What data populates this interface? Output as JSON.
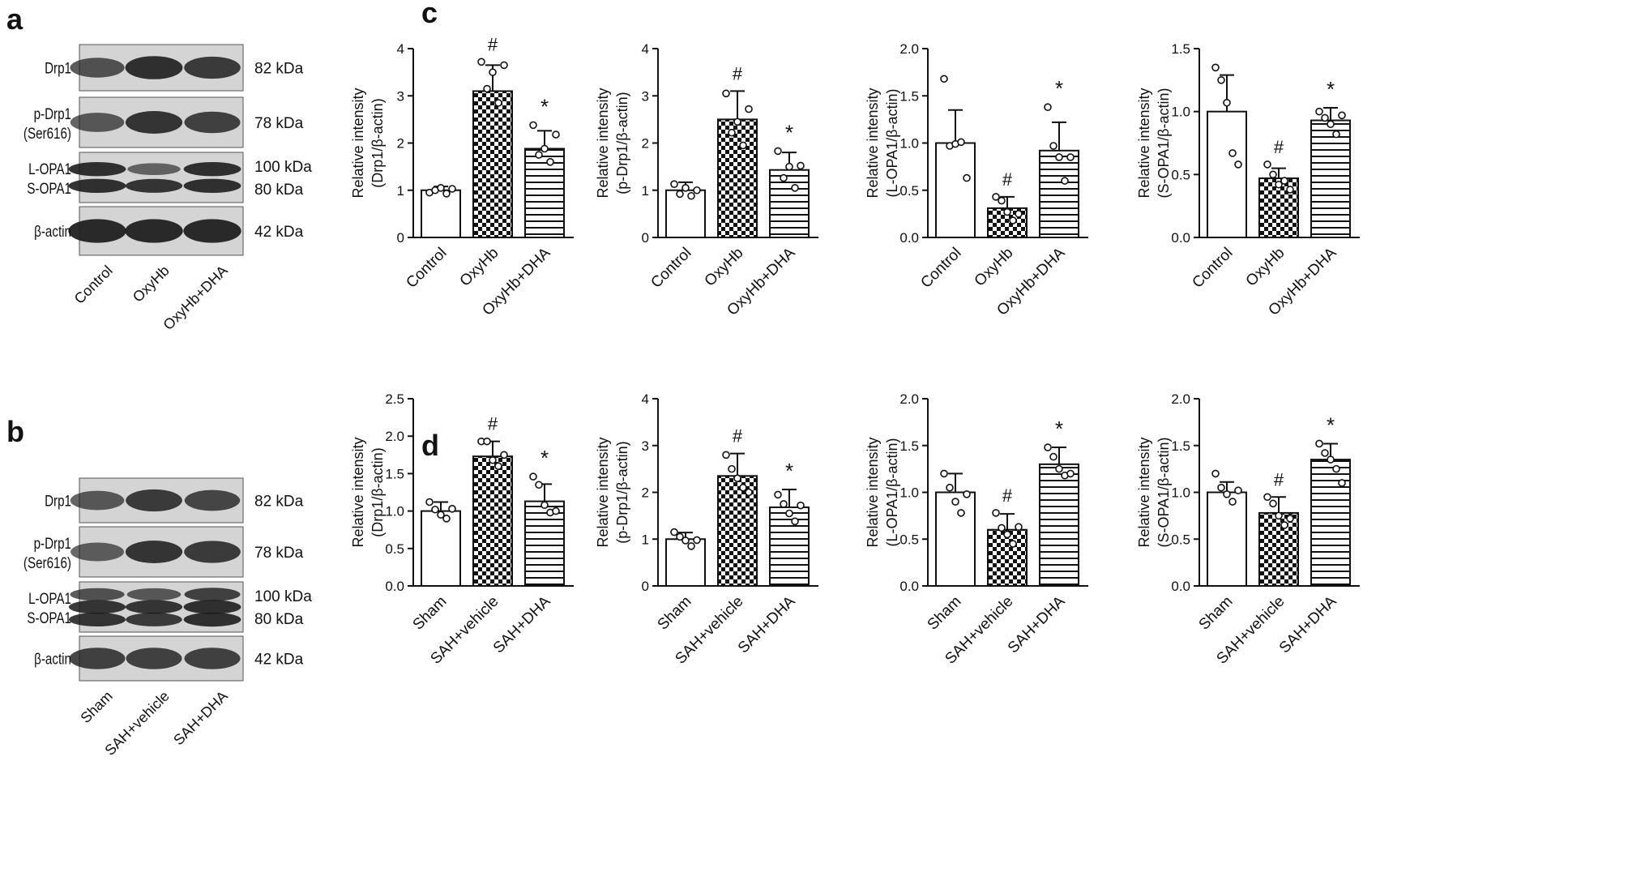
{
  "panels": {
    "a": "a",
    "b": "b",
    "c": "c",
    "d": "d"
  },
  "blots": {
    "a": {
      "rows": [
        {
          "label": "Drp1",
          "kda": "82 kDa"
        },
        {
          "label": "p-Drp1\n(Ser616)",
          "kda": "78 kDa"
        },
        {
          "label": "L-OPA1\nS-OPA1",
          "kda": "100 kDa\n80 kDa"
        },
        {
          "label": "β-actin",
          "kda": "42 kDa"
        }
      ],
      "lanes": [
        "Control",
        "OxyHb",
        "OxyHb+DHA"
      ]
    },
    "b": {
      "rows": [
        {
          "label": "Drp1",
          "kda": "82 kDa"
        },
        {
          "label": "p-Drp1\n(Ser616)",
          "kda": "78 kDa"
        },
        {
          "label": "L-OPA1\nS-OPA1",
          "kda": "100 kDa\n80 kDa"
        },
        {
          "label": "β-actin",
          "kda": "42 kDa"
        }
      ],
      "lanes": [
        "Sham",
        "SAH+vehicle",
        "SAH+DHA"
      ]
    }
  },
  "colors": {
    "bar_fill": "#ffffff",
    "bar_stroke": "#111111",
    "text": "#111111",
    "blot_bg": "#d2d2d2",
    "band": "#1a1a1a"
  },
  "chart_data": [
    {
      "panel": "c",
      "type": "bar",
      "categories": [
        "Control",
        "OxyHb",
        "OxyHb+DHA"
      ],
      "values": [
        1.0,
        3.1,
        1.88
      ],
      "errors": [
        0.08,
        0.55,
        0.38
      ],
      "points": [
        [
          0.95,
          1.0,
          1.05,
          0.93,
          1.03
        ],
        [
          3.72,
          3.15,
          3.5,
          2.85,
          3.65
        ],
        [
          2.38,
          1.75,
          1.88,
          1.6,
          2.18
        ]
      ],
      "annotations": [
        "",
        "#",
        "*"
      ],
      "ylabel": [
        "Relative intensity",
        "(Drp1/β-actin)"
      ],
      "ylim": [
        0,
        4
      ],
      "yticks": [
        0,
        1,
        2,
        3,
        4
      ],
      "ytick_labels": [
        "0",
        "1",
        "2",
        "3",
        "4"
      ],
      "patterns": [
        "plain",
        "check",
        "stripes"
      ]
    },
    {
      "panel": "c",
      "type": "bar",
      "categories": [
        "Control",
        "OxyHb",
        "OxyHb+DHA"
      ],
      "values": [
        1.0,
        2.5,
        1.43
      ],
      "errors": [
        0.17,
        0.6,
        0.37
      ],
      "points": [
        [
          1.13,
          0.92,
          1.05,
          0.88,
          1.0
        ],
        [
          3.05,
          2.22,
          2.45,
          1.95,
          2.72
        ],
        [
          1.83,
          1.26,
          1.5,
          1.05,
          1.52
        ]
      ],
      "annotations": [
        "",
        "#",
        "*"
      ],
      "ylabel": [
        "Relative intensity",
        "(p-Drp1/β-actin)"
      ],
      "ylim": [
        0,
        4
      ],
      "yticks": [
        0,
        1,
        2,
        3,
        4
      ],
      "ytick_labels": [
        "0",
        "1",
        "2",
        "3",
        "4"
      ],
      "patterns": [
        "plain",
        "check",
        "stripes"
      ]
    },
    {
      "panel": "c",
      "type": "bar",
      "categories": [
        "Control",
        "OxyHb",
        "OxyHb+DHA"
      ],
      "values": [
        1.0,
        0.31,
        0.92
      ],
      "errors": [
        0.35,
        0.12,
        0.3
      ],
      "points": [
        [
          1.68,
          0.97,
          0.99,
          1.01,
          0.63
        ],
        [
          0.43,
          0.39,
          0.27,
          0.18,
          0.25
        ],
        [
          1.38,
          0.97,
          0.85,
          0.6,
          0.85
        ]
      ],
      "annotations": [
        "",
        "#",
        "*"
      ],
      "ylabel": [
        "Relative intensity",
        "(L-OPA1/β-actin)"
      ],
      "ylim": [
        0,
        2
      ],
      "yticks": [
        0,
        0.5,
        1,
        1.5,
        2
      ],
      "ytick_labels": [
        "0.0",
        "0.5",
        "1.0",
        "1.5",
        "2.0"
      ],
      "patterns": [
        "plain",
        "check",
        "stripes"
      ]
    },
    {
      "panel": "c",
      "type": "bar",
      "categories": [
        "Control",
        "OxyHb",
        "OxyHb+DHA"
      ],
      "values": [
        1.0,
        0.47,
        0.93
      ],
      "errors": [
        0.29,
        0.08,
        0.1
      ],
      "points": [
        [
          1.35,
          1.25,
          1.07,
          0.67,
          0.58
        ],
        [
          0.58,
          0.5,
          0.42,
          0.45,
          0.38
        ],
        [
          1.0,
          0.95,
          0.9,
          0.82,
          0.97
        ]
      ],
      "annotations": [
        "",
        "#",
        "*"
      ],
      "ylabel": [
        "Relative intensity",
        "(S-OPA1/β-actin)"
      ],
      "ylim": [
        0,
        1.5
      ],
      "yticks": [
        0,
        0.5,
        1,
        1.5
      ],
      "ytick_labels": [
        "0.0",
        "0.5",
        "1.0",
        "1.5"
      ],
      "patterns": [
        "plain",
        "check",
        "stripes"
      ]
    },
    {
      "panel": "d",
      "type": "bar",
      "categories": [
        "Sham",
        "SAH+vehicle",
        "SAH+DHA"
      ],
      "values": [
        1.0,
        1.73,
        1.13
      ],
      "errors": [
        0.12,
        0.2,
        0.23
      ],
      "points": [
        [
          1.12,
          1.02,
          0.95,
          0.9,
          1.03
        ],
        [
          1.93,
          1.93,
          1.68,
          1.6,
          1.75
        ],
        [
          1.46,
          1.35,
          1.08,
          0.98,
          1.0
        ]
      ],
      "annotations": [
        "",
        "#",
        "*"
      ],
      "ylabel": [
        "Relative intensity",
        "(Drp1/β-actin)"
      ],
      "ylim": [
        0,
        2.5
      ],
      "yticks": [
        0,
        0.5,
        1,
        1.5,
        2,
        2.5
      ],
      "ytick_labels": [
        "0.0",
        "0.5",
        "1.0",
        "1.5",
        "2.0",
        "2.5"
      ],
      "patterns": [
        "plain",
        "check",
        "stripes"
      ]
    },
    {
      "panel": "d",
      "type": "bar",
      "categories": [
        "Sham",
        "SAH+vehicle",
        "SAH+DHA"
      ],
      "values": [
        1.0,
        2.35,
        1.68
      ],
      "errors": [
        0.14,
        0.48,
        0.38
      ],
      "points": [
        [
          1.15,
          1.05,
          0.97,
          0.85,
          0.98
        ],
        [
          2.8,
          2.5,
          2.3,
          2.1,
          2.0
        ],
        [
          1.95,
          1.75,
          1.55,
          1.38,
          1.72
        ]
      ],
      "annotations": [
        "",
        "#",
        "*"
      ],
      "ylabel": [
        "Relative intensity",
        "(p-Drp1/β-actin)"
      ],
      "ylim": [
        0,
        4
      ],
      "yticks": [
        0,
        1,
        2,
        3,
        4
      ],
      "ytick_labels": [
        "0",
        "1",
        "2",
        "3",
        "4"
      ],
      "patterns": [
        "plain",
        "check",
        "stripes"
      ]
    },
    {
      "panel": "d",
      "type": "bar",
      "categories": [
        "Sham",
        "SAH+vehicle",
        "SAH+DHA"
      ],
      "values": [
        1.0,
        0.6,
        1.3
      ],
      "errors": [
        0.2,
        0.17,
        0.18
      ],
      "points": [
        [
          1.2,
          1.05,
          0.9,
          0.78,
          0.98
        ],
        [
          0.78,
          0.62,
          0.55,
          0.45,
          0.63
        ],
        [
          1.48,
          1.38,
          1.25,
          1.18,
          1.2
        ]
      ],
      "annotations": [
        "",
        "#",
        "*"
      ],
      "ylabel": [
        "Relative intensity",
        "(L-OPA1/β-actin)"
      ],
      "ylim": [
        0,
        2
      ],
      "yticks": [
        0,
        0.5,
        1,
        1.5,
        2
      ],
      "ytick_labels": [
        "0.0",
        "0.5",
        "1.0",
        "1.5",
        "2.0"
      ],
      "patterns": [
        "plain",
        "check",
        "stripes"
      ]
    },
    {
      "panel": "d",
      "type": "bar",
      "categories": [
        "Sham",
        "SAH+vehicle",
        "SAH+DHA"
      ],
      "values": [
        1.0,
        0.78,
        1.35
      ],
      "errors": [
        0.11,
        0.17,
        0.17
      ],
      "points": [
        [
          1.2,
          1.05,
          0.98,
          0.9,
          1.02
        ],
        [
          0.95,
          0.88,
          0.75,
          0.65,
          0.72
        ],
        [
          1.52,
          1.42,
          1.35,
          1.25,
          1.1
        ]
      ],
      "annotations": [
        "",
        "#",
        "*"
      ],
      "ylabel": [
        "Relative intensity",
        "(S-OPA1/β-actin)"
      ],
      "ylim": [
        0,
        2
      ],
      "yticks": [
        0,
        0.5,
        1,
        1.5,
        2
      ],
      "ytick_labels": [
        "0.0",
        "0.5",
        "1.0",
        "1.5",
        "2.0"
      ],
      "patterns": [
        "plain",
        "check",
        "stripes"
      ]
    }
  ]
}
